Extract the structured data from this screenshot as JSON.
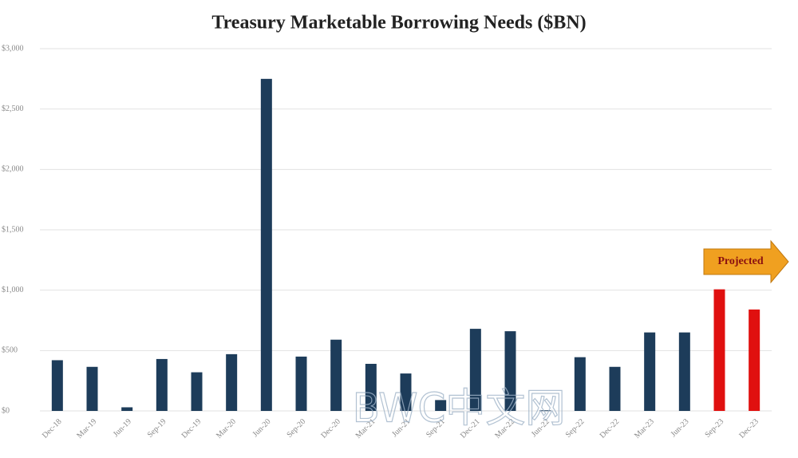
{
  "chart_data": {
    "type": "bar",
    "title": "Treasury Marketable Borrowing Needs ($BN)",
    "categories": [
      "Dec-18",
      "Mar-19",
      "Jun-19",
      "Sep-19",
      "Dec-19",
      "Mar-20",
      "Jun-20",
      "Sep-20",
      "Dec-20",
      "Mar-21",
      "Jun-21",
      "Sep-21",
      "Dec-21",
      "Mar-22",
      "Jun-22",
      "Sep-22",
      "Dec-22",
      "Mar-23",
      "Jun-23",
      "Sep-23",
      "Dec-23"
    ],
    "values": [
      420,
      365,
      30,
      430,
      320,
      470,
      2750,
      450,
      590,
      390,
      310,
      90,
      680,
      660,
      5,
      445,
      365,
      650,
      650,
      1007,
      840
    ],
    "colors": [
      "#1d3c5a",
      "#1d3c5a",
      "#1d3c5a",
      "#1d3c5a",
      "#1d3c5a",
      "#1d3c5a",
      "#1d3c5a",
      "#1d3c5a",
      "#1d3c5a",
      "#1d3c5a",
      "#1d3c5a",
      "#1d3c5a",
      "#1d3c5a",
      "#1d3c5a",
      "#1d3c5a",
      "#1d3c5a",
      "#1d3c5a",
      "#1d3c5a",
      "#1d3c5a",
      "#e0100f",
      "#e0100f"
    ],
    "ylim": [
      0,
      3000
    ],
    "yticks": [
      {
        "value": 0,
        "label": "$0"
      },
      {
        "value": 500,
        "label": "$500"
      },
      {
        "value": 1000,
        "label": "$1,000"
      },
      {
        "value": 1500,
        "label": "$1,500"
      },
      {
        "value": 2000,
        "label": "$2,000"
      },
      {
        "value": 2500,
        "label": "$2,500"
      },
      {
        "value": 3000,
        "label": "$3,000"
      }
    ],
    "grid": true,
    "annotation": "Projected",
    "watermark": "BWC中文网"
  }
}
